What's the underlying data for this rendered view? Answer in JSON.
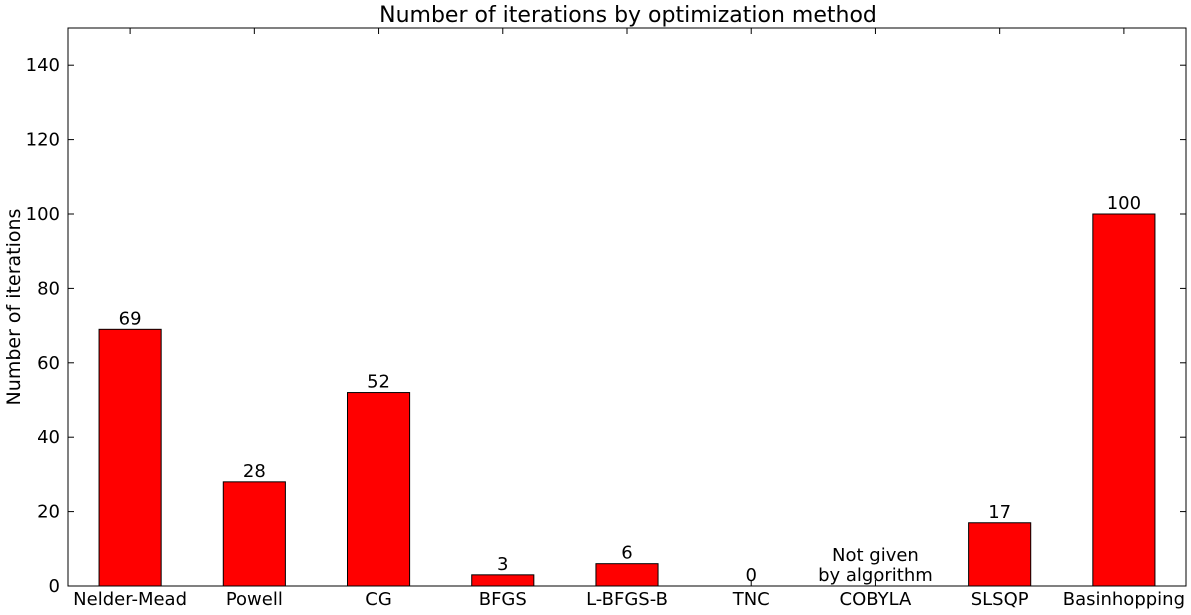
{
  "chart_data": {
    "type": "bar",
    "title": "Number of iterations by optimization method",
    "xlabel": "",
    "ylabel": "Number of iterations",
    "categories": [
      "Nelder-Mead",
      "Powell",
      "CG",
      "BFGS",
      "L-BFGS-B",
      "TNC",
      "COBYLA",
      "SLSQP",
      "Basinhopping"
    ],
    "values": [
      69,
      28,
      52,
      3,
      6,
      0,
      null,
      17,
      100
    ],
    "bar_labels": [
      "69",
      "28",
      "52",
      "3",
      "6",
      "0",
      "Not given\nby algorithm",
      "17",
      "100"
    ],
    "ylim": [
      0,
      150
    ],
    "yticks": [
      0,
      20,
      40,
      60,
      80,
      100,
      120,
      140
    ],
    "grid": false,
    "colors": {
      "bar": "#ff0000",
      "edge": "#000000"
    }
  }
}
